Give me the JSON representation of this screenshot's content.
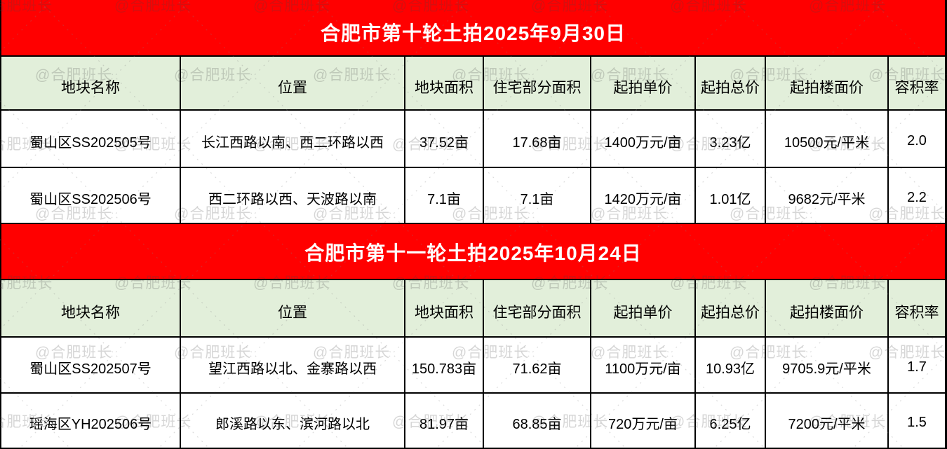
{
  "watermark": {
    "text": "@合肥班长"
  },
  "colors": {
    "banner_bg": "#ff0000",
    "banner_text": "#ffffff",
    "header_bg": "#e2efda",
    "border": "#000000",
    "watermark_gray": "#d4d4d4"
  },
  "sections": [
    {
      "title": "合肥市第十轮土拍2025年9月30日",
      "columns": [
        "地块名称",
        "位置",
        "地块面积",
        "住宅部分面积",
        "起拍单价",
        "起拍总价",
        "起拍楼面价",
        "容积率"
      ],
      "rows": [
        [
          "蜀山区SS202505号",
          "长江西路以南、西二环路以西",
          "37.52亩",
          "17.68亩",
          "1400万元/亩",
          "3.23亿",
          "10500元/平米",
          "2.0"
        ],
        [
          "蜀山区SS202506号",
          "西二环路以西、天波路以南",
          "7.1亩",
          "7.1亩",
          "1420万元/亩",
          "1.01亿",
          "9682元/平米",
          "2.2"
        ]
      ]
    },
    {
      "title": "合肥市第十一轮土拍2025年10月24日",
      "columns": [
        "地块名称",
        "位置",
        "地块面积",
        "住宅部分面积",
        "起拍单价",
        "起拍总价",
        "起拍楼面价",
        "容积率"
      ],
      "rows": [
        [
          "蜀山区SS202507号",
          "望江西路以北、金寨路以西",
          "150.783亩",
          "71.62亩",
          "1100万元/亩",
          "10.93亿",
          "9705.9元/平米",
          "1.7"
        ],
        [
          "瑶海区YH202506号",
          "郎溪路以东、滨河路以北",
          "81.97亩",
          "68.85亩",
          "720万元/亩",
          "6.25亿",
          "7200元/平米",
          "1.5"
        ]
      ]
    }
  ]
}
